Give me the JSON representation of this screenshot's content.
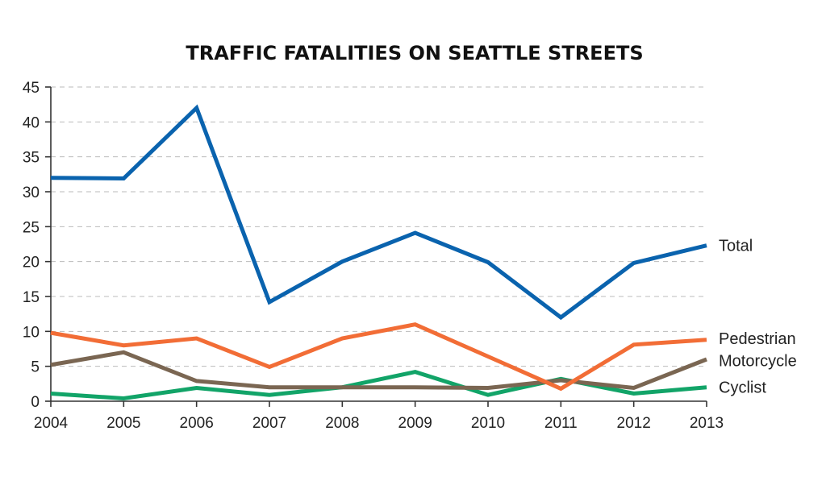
{
  "chart_data": {
    "type": "line",
    "title": "TRAFFIC FATALITIES ON SEATTLE STREETS",
    "xlabel": "",
    "ylabel": "",
    "x": [
      "2004",
      "2005",
      "2006",
      "2007",
      "2008",
      "2009",
      "2010",
      "2011",
      "2012",
      "2013"
    ],
    "ylim": [
      0,
      45
    ],
    "yticks": [
      "0",
      "5",
      "10",
      "15",
      "20",
      "25",
      "30",
      "35",
      "40",
      "45"
    ],
    "grid": "horizontal dashed",
    "legend": "line-end labels",
    "series": [
      {
        "name": "Total",
        "color": "#0a63ae",
        "values": [
          32,
          31.9,
          42,
          14.2,
          20,
          24.1,
          19.9,
          12,
          19.8,
          22.3
        ]
      },
      {
        "name": "Pedestrian",
        "color": "#f26d36",
        "values": [
          9.8,
          8,
          9,
          4.9,
          9,
          11,
          6.4,
          1.8,
          8.1,
          8.8
        ]
      },
      {
        "name": "Motorcycle",
        "color": "#7a6652",
        "values": [
          5.2,
          7,
          2.9,
          2,
          2,
          2,
          1.9,
          3,
          1.9,
          6
        ]
      },
      {
        "name": "Cyclist",
        "color": "#12a468",
        "values": [
          1.1,
          0.4,
          1.9,
          0.9,
          2,
          4.2,
          0.9,
          3.2,
          1.1,
          2
        ]
      }
    ]
  }
}
